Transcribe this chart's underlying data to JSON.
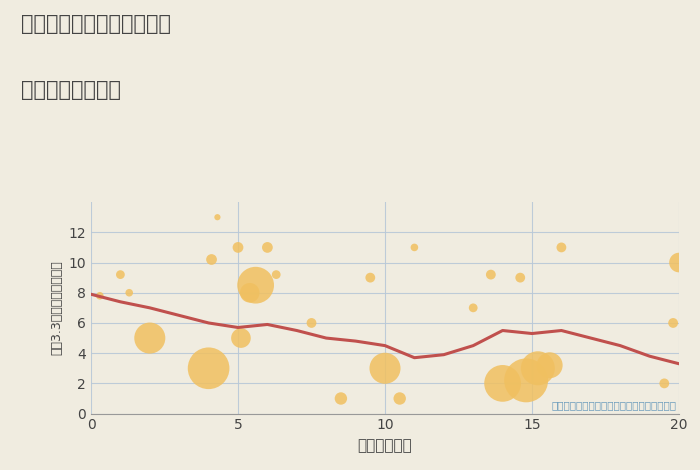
{
  "title_line1": "兵庫県丹波市春日町国領の",
  "title_line2": "駅距離別土地価格",
  "xlabel": "駅距離（分）",
  "ylabel": "坪（3.3㎡）単価（万円）",
  "annotation": "円の大きさは、取引のあった物件面積を示す",
  "bg_color": "#f0ece0",
  "plot_bg_color": "#f0ece0",
  "scatter_color": "#f0c060",
  "line_color": "#c0504d",
  "grid_color": "#b8c8d8",
  "xlim": [
    0,
    20
  ],
  "ylim": [
    0,
    14
  ],
  "xticks": [
    0,
    5,
    10,
    15,
    20
  ],
  "yticks": [
    0,
    2,
    4,
    6,
    8,
    10,
    12
  ],
  "scatter_x": [
    0.3,
    1.0,
    1.3,
    2.0,
    4.0,
    4.1,
    4.3,
    5.0,
    5.1,
    5.4,
    5.6,
    6.0,
    6.3,
    7.5,
    8.5,
    9.5,
    10.0,
    10.5,
    11.0,
    13.0,
    13.6,
    14.0,
    14.6,
    14.8,
    15.2,
    15.6,
    16.0,
    19.5,
    19.8,
    20.0
  ],
  "scatter_y": [
    7.8,
    9.2,
    8.0,
    5.0,
    3.0,
    10.2,
    13.0,
    11.0,
    5.0,
    8.0,
    8.5,
    11.0,
    9.2,
    6.0,
    1.0,
    9.0,
    3.0,
    1.0,
    11.0,
    7.0,
    9.2,
    2.0,
    9.0,
    2.2,
    3.0,
    3.2,
    11.0,
    2.0,
    6.0,
    10.0
  ],
  "scatter_size": [
    30,
    40,
    30,
    500,
    900,
    60,
    20,
    60,
    200,
    200,
    700,
    60,
    40,
    50,
    80,
    50,
    500,
    80,
    30,
    40,
    50,
    700,
    50,
    1000,
    600,
    350,
    50,
    50,
    50,
    200
  ],
  "line_x": [
    0,
    1,
    2,
    3,
    4,
    5,
    6,
    7,
    8,
    9,
    10,
    11,
    12,
    13,
    14,
    15,
    16,
    17,
    18,
    19,
    20
  ],
  "line_y": [
    7.9,
    7.4,
    7.0,
    6.5,
    6.0,
    5.7,
    5.9,
    5.5,
    5.0,
    4.8,
    4.5,
    3.7,
    3.9,
    4.5,
    5.5,
    5.3,
    5.5,
    5.0,
    4.5,
    3.8,
    3.3
  ]
}
